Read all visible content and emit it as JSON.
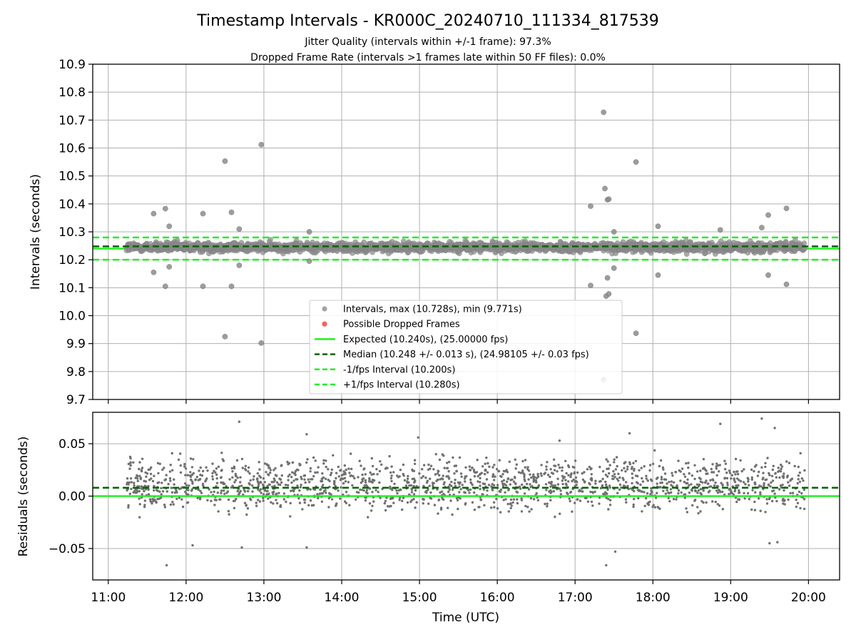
{
  "title": "Timestamp Intervals - KR000C_20240710_111334_817539",
  "subtitle_1": "Jitter Quality (intervals within +/-1 frame): 97.3%",
  "subtitle_2": "Dropped Frame Rate (intervals >1 frames late within 50 FF files): 0.0%",
  "colors": {
    "points": "#8c8c8c",
    "residual_points": "#707070",
    "dropped": "#ff4d4d",
    "expected": "#22ee22",
    "median": "#006400",
    "band": "#22ee22",
    "grid": "#b0b0b0"
  },
  "chart_data": [
    {
      "type": "scatter",
      "panel": "top",
      "ylabel": "Intervals (seconds)",
      "xlabel": "",
      "ylim": [
        9.7,
        10.9
      ],
      "xlim": [
        "10:48",
        "20:24"
      ],
      "yticks": [
        9.7,
        9.8,
        9.9,
        10.0,
        10.1,
        10.2,
        10.3,
        10.4,
        10.5,
        10.6,
        10.7,
        10.8,
        10.9
      ],
      "ytick_labels": [
        "9.7",
        "9.8",
        "9.9",
        "10.0",
        "10.1",
        "10.2",
        "10.3",
        "10.4",
        "10.5",
        "10.6",
        "10.7",
        "10.8",
        "10.9"
      ],
      "xticks": [
        "11:00",
        "12:00",
        "13:00",
        "14:00",
        "15:00",
        "16:00",
        "17:00",
        "18:00",
        "19:00",
        "20:00"
      ],
      "grid": true,
      "legend_position": "lower-center",
      "legend": [
        {
          "label": "Intervals, max (10.728s), min (9.771s)",
          "style": "gray-dot"
        },
        {
          "label": "Possible Dropped Frames",
          "style": "red-dot"
        },
        {
          "label": "Expected (10.240s), (25.00000 fps)",
          "style": "green-solid"
        },
        {
          "label": "Median (10.248 +/- 0.013 s), (24.98105 +/- 0.03 fps)",
          "style": "darkgreen-dashed"
        },
        {
          "label": "-1/fps Interval (10.200s)",
          "style": "green-dashed"
        },
        {
          "label": "+1/fps Interval (10.280s)",
          "style": "green-dashed"
        }
      ],
      "reference_lines": {
        "expected": 10.24,
        "median": 10.248,
        "lower": 10.2,
        "upper": 10.28
      },
      "main_band": {
        "x_start": "11:14",
        "x_end": "19:57",
        "y_center": 10.245,
        "y_spread": 0.03,
        "count": 1900
      },
      "outliers": [
        {
          "x": "11:35",
          "y": 10.365
        },
        {
          "x": "11:35",
          "y": 10.155
        },
        {
          "x": "11:44",
          "y": 10.383
        },
        {
          "x": "11:44",
          "y": 10.105
        },
        {
          "x": "11:47",
          "y": 10.32
        },
        {
          "x": "11:47",
          "y": 10.175
        },
        {
          "x": "12:13",
          "y": 10.365
        },
        {
          "x": "12:13",
          "y": 10.105
        },
        {
          "x": "12:30",
          "y": 10.553
        },
        {
          "x": "12:30",
          "y": 9.925
        },
        {
          "x": "12:35",
          "y": 10.37
        },
        {
          "x": "12:35",
          "y": 10.105
        },
        {
          "x": "12:41",
          "y": 10.31
        },
        {
          "x": "12:41",
          "y": 10.18
        },
        {
          "x": "12:58",
          "y": 10.612
        },
        {
          "x": "12:58",
          "y": 9.902
        },
        {
          "x": "13:35",
          "y": 10.3
        },
        {
          "x": "13:35",
          "y": 10.195
        },
        {
          "x": "17:12",
          "y": 10.392
        },
        {
          "x": "17:12",
          "y": 10.108
        },
        {
          "x": "17:22",
          "y": 10.728
        },
        {
          "x": "17:22",
          "y": 9.771
        },
        {
          "x": "17:23",
          "y": 10.455
        },
        {
          "x": "17:25",
          "y": 10.415
        },
        {
          "x": "17:26",
          "y": 10.417
        },
        {
          "x": "17:25",
          "y": 10.135
        },
        {
          "x": "17:24",
          "y": 10.07
        },
        {
          "x": "17:26",
          "y": 10.078
        },
        {
          "x": "17:30",
          "y": 10.3
        },
        {
          "x": "17:30",
          "y": 10.17
        },
        {
          "x": "17:47",
          "y": 10.55
        },
        {
          "x": "17:47",
          "y": 9.937
        },
        {
          "x": "18:04",
          "y": 10.32
        },
        {
          "x": "18:04",
          "y": 10.145
        },
        {
          "x": "19:29",
          "y": 10.36
        },
        {
          "x": "19:29",
          "y": 10.145
        },
        {
          "x": "19:43",
          "y": 10.384
        },
        {
          "x": "19:43",
          "y": 10.112
        },
        {
          "x": "18:52",
          "y": 10.307
        },
        {
          "x": "19:24",
          "y": 10.315
        }
      ],
      "dropped_frames": []
    },
    {
      "type": "scatter",
      "panel": "bottom",
      "ylabel": "Residuals (seconds)",
      "xlabel": "Time (UTC)",
      "ylim": [
        -0.08,
        0.08
      ],
      "xlim": [
        "10:48",
        "20:24"
      ],
      "yticks": [
        -0.05,
        0.0,
        0.05
      ],
      "ytick_labels": [
        "−0.05",
        "0.00",
        "0.05"
      ],
      "xticks": [
        "11:00",
        "12:00",
        "13:00",
        "14:00",
        "15:00",
        "16:00",
        "17:00",
        "18:00",
        "19:00",
        "20:00"
      ],
      "grid": true,
      "reference_lines": {
        "expected": 0.0,
        "median": 0.008
      },
      "residual_band": {
        "x_start": "11:14",
        "x_end": "19:57",
        "center_upper": 0.02,
        "center_lower": 0.003,
        "spread": 0.03,
        "count": 1700
      },
      "outliers": [
        {
          "x": "12:41",
          "y": 0.071
        },
        {
          "x": "13:33",
          "y": 0.059
        },
        {
          "x": "14:59",
          "y": 0.056
        },
        {
          "x": "16:48",
          "y": 0.053
        },
        {
          "x": "17:42",
          "y": 0.06
        },
        {
          "x": "18:52",
          "y": 0.069
        },
        {
          "x": "19:24",
          "y": 0.074
        },
        {
          "x": "19:34",
          "y": 0.065
        },
        {
          "x": "11:45",
          "y": -0.066
        },
        {
          "x": "12:05",
          "y": -0.047
        },
        {
          "x": "12:43",
          "y": -0.049
        },
        {
          "x": "13:33",
          "y": -0.049
        },
        {
          "x": "17:24",
          "y": -0.066
        },
        {
          "x": "17:31",
          "y": -0.053
        },
        {
          "x": "19:30",
          "y": -0.045
        },
        {
          "x": "19:36",
          "y": -0.044
        }
      ]
    }
  ]
}
